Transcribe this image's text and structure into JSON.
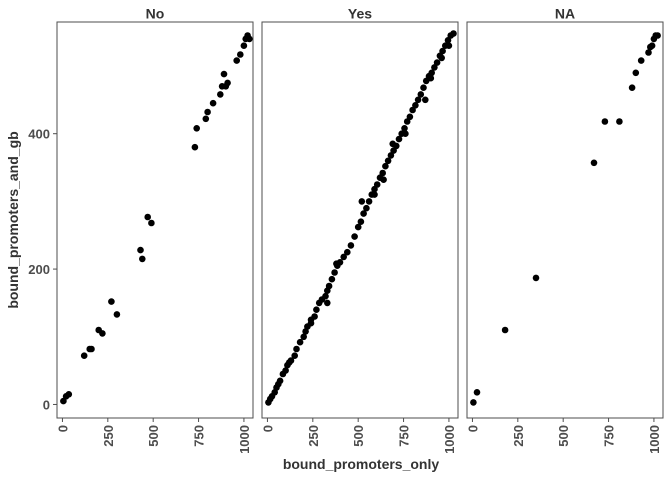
{
  "chart_data": {
    "type": "scatter",
    "xlabel": "bound_promoters_only",
    "ylabel": "bound_promoters_and_gb",
    "x_ticks": [
      "0",
      "250",
      "500",
      "750",
      "1000"
    ],
    "y_ticks": [
      "0",
      "200",
      "400"
    ],
    "xlim": [
      -30,
      1050
    ],
    "ylim": [
      -20,
      565
    ],
    "grid": false,
    "marker_color": "#000000",
    "panels": [
      {
        "label": "No",
        "points": [
          [
            5,
            5
          ],
          [
            20,
            12
          ],
          [
            35,
            15
          ],
          [
            120,
            72
          ],
          [
            150,
            82
          ],
          [
            160,
            82
          ],
          [
            200,
            110
          ],
          [
            220,
            105
          ],
          [
            270,
            152
          ],
          [
            300,
            133
          ],
          [
            430,
            228
          ],
          [
            440,
            215
          ],
          [
            470,
            277
          ],
          [
            490,
            268
          ],
          [
            730,
            380
          ],
          [
            740,
            408
          ],
          [
            790,
            422
          ],
          [
            800,
            432
          ],
          [
            830,
            445
          ],
          [
            870,
            458
          ],
          [
            880,
            470
          ],
          [
            890,
            488
          ],
          [
            900,
            470
          ],
          [
            910,
            475
          ],
          [
            960,
            508
          ],
          [
            980,
            517
          ],
          [
            1000,
            530
          ],
          [
            1010,
            540
          ],
          [
            1020,
            545
          ],
          [
            1030,
            540
          ]
        ]
      },
      {
        "label": "Yes",
        "points": [
          [
            5,
            3
          ],
          [
            15,
            8
          ],
          [
            25,
            12
          ],
          [
            40,
            18
          ],
          [
            50,
            25
          ],
          [
            60,
            30
          ],
          [
            70,
            35
          ],
          [
            85,
            45
          ],
          [
            100,
            50
          ],
          [
            110,
            58
          ],
          [
            120,
            62
          ],
          [
            130,
            65
          ],
          [
            150,
            72
          ],
          [
            160,
            82
          ],
          [
            180,
            92
          ],
          [
            200,
            100
          ],
          [
            210,
            108
          ],
          [
            220,
            115
          ],
          [
            240,
            120
          ],
          [
            260,
            130
          ],
          [
            270,
            140
          ],
          [
            285,
            150
          ],
          [
            300,
            155
          ],
          [
            320,
            160
          ],
          [
            330,
            168
          ],
          [
            340,
            175
          ],
          [
            355,
            185
          ],
          [
            370,
            195
          ],
          [
            385,
            205
          ],
          [
            400,
            210
          ],
          [
            420,
            218
          ],
          [
            440,
            225
          ],
          [
            460,
            235
          ],
          [
            480,
            248
          ],
          [
            500,
            262
          ],
          [
            515,
            270
          ],
          [
            530,
            282
          ],
          [
            545,
            290
          ],
          [
            560,
            300
          ],
          [
            575,
            310
          ],
          [
            590,
            318
          ],
          [
            605,
            325
          ],
          [
            620,
            335
          ],
          [
            635,
            342
          ],
          [
            650,
            352
          ],
          [
            665,
            360
          ],
          [
            680,
            368
          ],
          [
            695,
            375
          ],
          [
            710,
            382
          ],
          [
            725,
            392
          ],
          [
            740,
            400
          ],
          [
            755,
            408
          ],
          [
            770,
            418
          ],
          [
            785,
            425
          ],
          [
            800,
            435
          ],
          [
            815,
            442
          ],
          [
            830,
            450
          ],
          [
            845,
            458
          ],
          [
            860,
            468
          ],
          [
            875,
            478
          ],
          [
            890,
            485
          ],
          [
            905,
            490
          ],
          [
            920,
            498
          ],
          [
            935,
            505
          ],
          [
            950,
            515
          ],
          [
            965,
            522
          ],
          [
            980,
            530
          ],
          [
            995,
            538
          ],
          [
            1010,
            545
          ],
          [
            1025,
            548
          ],
          [
            240,
            125
          ],
          [
            380,
            208
          ],
          [
            520,
            300
          ],
          [
            640,
            332
          ],
          [
            690,
            385
          ],
          [
            870,
            450
          ],
          [
            900,
            482
          ],
          [
            960,
            512
          ],
          [
            1000,
            530
          ],
          [
            330,
            150
          ],
          [
            590,
            310
          ],
          [
            760,
            400
          ]
        ]
      },
      {
        "label": "NA",
        "points": [
          [
            5,
            3
          ],
          [
            25,
            18
          ],
          [
            180,
            110
          ],
          [
            350,
            187
          ],
          [
            670,
            357
          ],
          [
            730,
            418
          ],
          [
            810,
            418
          ],
          [
            880,
            468
          ],
          [
            900,
            490
          ],
          [
            930,
            508
          ],
          [
            970,
            520
          ],
          [
            990,
            530
          ],
          [
            1000,
            540
          ],
          [
            1010,
            545
          ],
          [
            1020,
            545
          ],
          [
            980,
            528
          ]
        ]
      }
    ]
  }
}
